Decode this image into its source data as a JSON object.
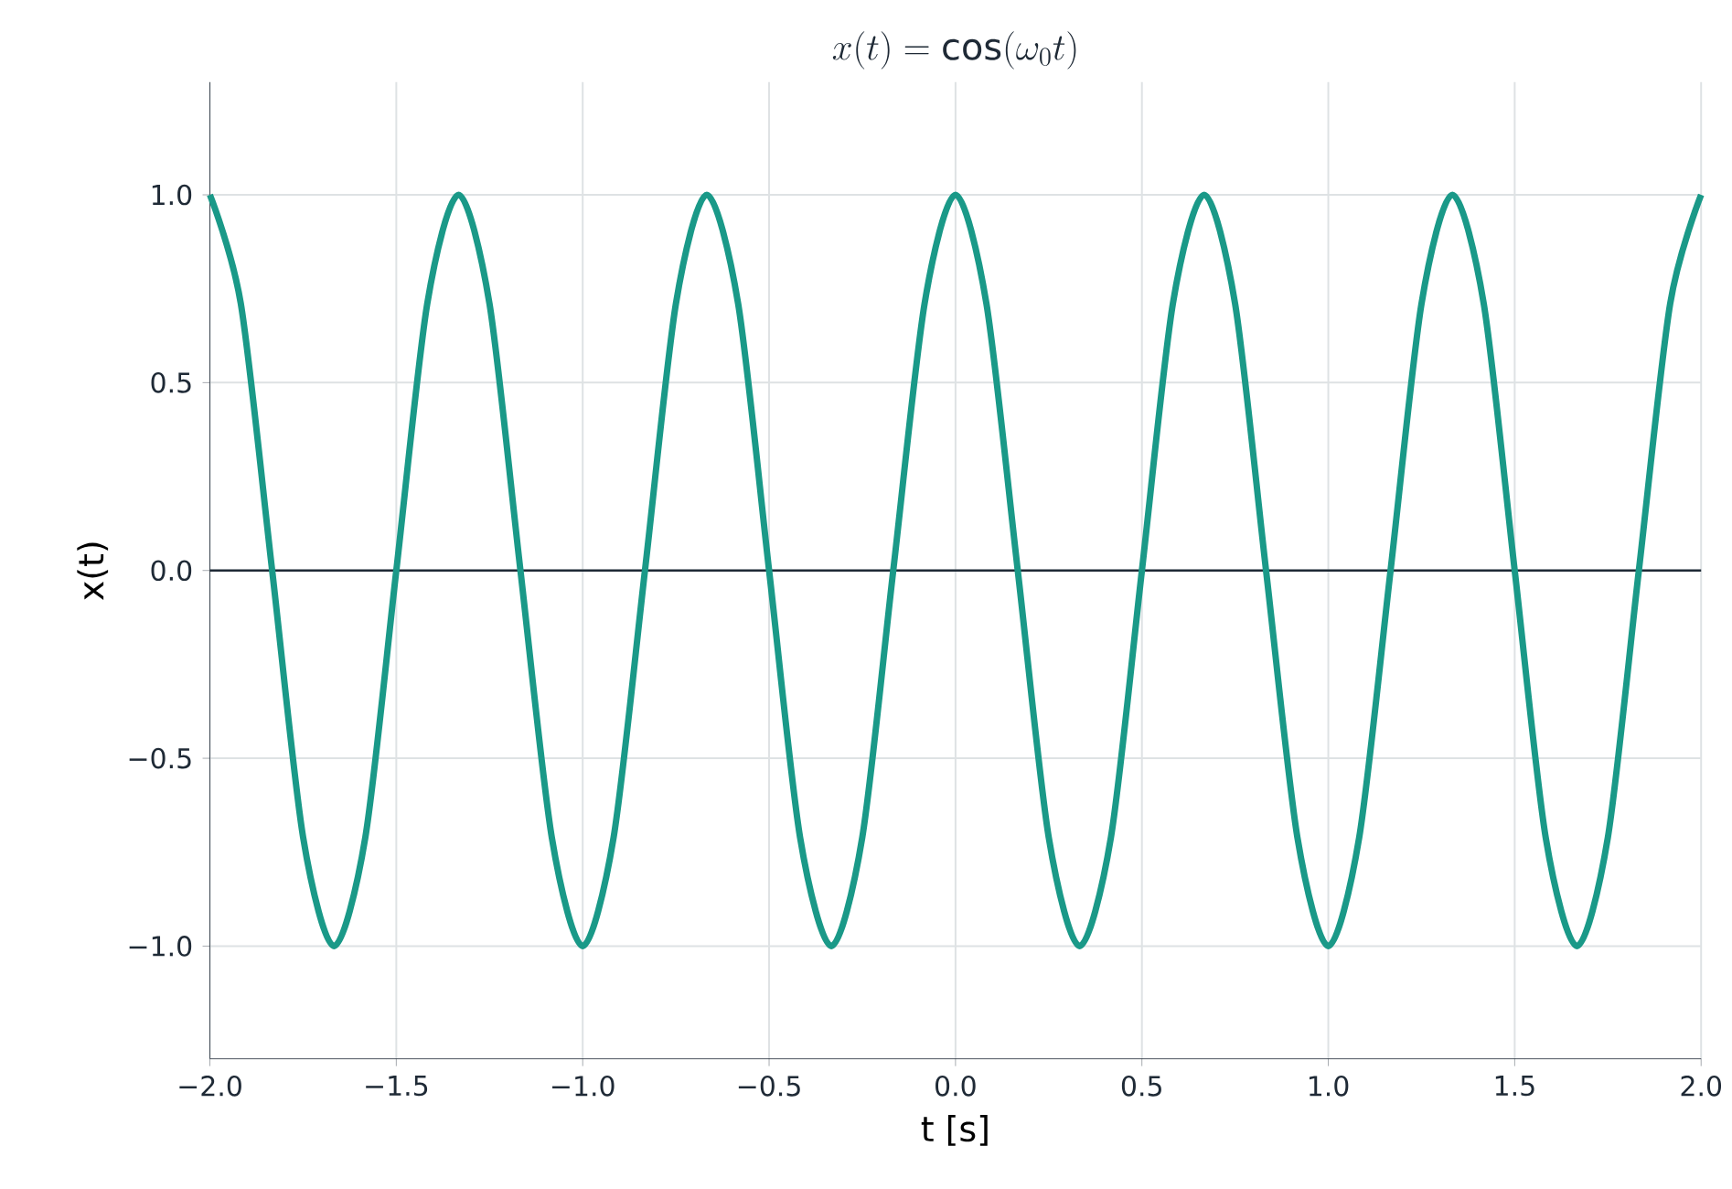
{
  "chart_data": {
    "type": "line",
    "title": "x(t) = \\cos(\\omega_0 t)",
    "xlabel": "t [s]",
    "ylabel": "x(t)",
    "x": [
      -2,
      -1.917,
      -1.833,
      -1.75,
      -1.667,
      -1.583,
      -1.5,
      -1.417,
      -1.333,
      -1.25,
      -1.167,
      -1.083,
      -1,
      -0.917,
      -0.833,
      -0.75,
      -0.667,
      -0.583,
      -0.5,
      -0.417,
      -0.333,
      -0.25,
      -0.167,
      -0.083,
      0,
      0.083,
      0.167,
      0.25,
      0.333,
      0.417,
      0.5,
      0.583,
      0.667,
      0.75,
      0.833,
      0.917,
      1,
      1.083,
      1.167,
      1.25,
      1.333,
      1.417,
      1.5,
      1.583,
      1.667,
      1.75,
      1.833,
      1.917,
      2
    ],
    "series": [
      {
        "color": "#1a9988",
        "values": [
          1,
          0.71,
          0,
          -0.71,
          -1,
          -0.71,
          0,
          0.71,
          1,
          0.71,
          0,
          -0.71,
          -1,
          -0.71,
          0,
          0.71,
          1,
          0.71,
          0,
          -0.71,
          -1,
          -0.71,
          0,
          0.71,
          1,
          0.71,
          0,
          -0.71,
          -1,
          -0.71,
          0,
          0.71,
          1,
          0.71,
          0,
          -0.71,
          -1,
          -0.71,
          0,
          0.71,
          1,
          0.71,
          0,
          -0.71,
          -1,
          -0.71,
          0,
          0.71,
          1
        ]
      }
    ],
    "xlim": [
      -2,
      2
    ],
    "ylim": [
      -1.3,
      1.3
    ],
    "xticks": [
      {
        "value": -2,
        "label": "−2.0"
      },
      {
        "value": -1.5,
        "label": "−1.5"
      },
      {
        "value": -1,
        "label": "−1.0"
      },
      {
        "value": -0.5,
        "label": "−0.5"
      },
      {
        "value": 0,
        "label": "0.0"
      },
      {
        "value": 0.5,
        "label": "0.5"
      },
      {
        "value": 1,
        "label": "1.0"
      },
      {
        "value": 1.5,
        "label": "1.5"
      },
      {
        "value": 2,
        "label": "2.0"
      }
    ],
    "yticks": [
      {
        "value": -1,
        "label": "−1.0"
      },
      {
        "value": -0.5,
        "label": "−0.5"
      },
      {
        "value": 0,
        "label": "0.0"
      },
      {
        "value": 0.5,
        "label": "0.5"
      },
      {
        "value": 1,
        "label": "1.0"
      }
    ],
    "ref_lines": [
      {
        "axis": "y",
        "value": 0,
        "color": "#1f2a36"
      }
    ],
    "grid": true,
    "marker": "none",
    "line_style": "solid"
  }
}
